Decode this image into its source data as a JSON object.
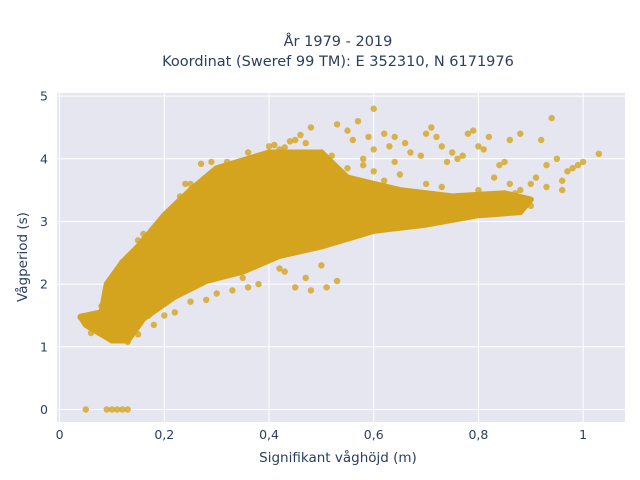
{
  "chart_data": {
    "type": "scatter",
    "title_line1": "År 1979 - 2019",
    "title_line2": "Koordinat (Sweref 99 TM): E 352310, N 6171976",
    "xlabel": "Signifikant våghöjd (m)",
    "ylabel": "Vågperiod (s)",
    "xlim": [
      -0.005,
      1.08
    ],
    "ylim": [
      -0.2,
      5.05
    ],
    "x_ticks": [
      {
        "value": 0,
        "label": "0"
      },
      {
        "value": 0.2,
        "label": "0,2"
      },
      {
        "value": 0.4,
        "label": "0,4"
      },
      {
        "value": 0.6,
        "label": "0,6"
      },
      {
        "value": 0.8,
        "label": "0,8"
      },
      {
        "value": 1,
        "label": "1"
      }
    ],
    "y_ticks": [
      {
        "value": 0,
        "label": "0"
      },
      {
        "value": 1,
        "label": "1"
      },
      {
        "value": 2,
        "label": "2"
      },
      {
        "value": 3,
        "label": "3"
      },
      {
        "value": 4,
        "label": "4"
      },
      {
        "value": 5,
        "label": "5"
      }
    ],
    "grid": true,
    "background_color": "#e5e6ef",
    "marker_color": "#d4a41f",
    "dense_region_outline": [
      [
        0.04,
        1.48
      ],
      [
        0.08,
        1.55
      ],
      [
        0.09,
        2.0
      ],
      [
        0.12,
        2.35
      ],
      [
        0.15,
        2.6
      ],
      [
        0.2,
        3.1
      ],
      [
        0.25,
        3.5
      ],
      [
        0.3,
        3.85
      ],
      [
        0.4,
        4.1
      ],
      [
        0.5,
        4.1
      ],
      [
        0.55,
        3.7
      ],
      [
        0.65,
        3.5
      ],
      [
        0.75,
        3.4
      ],
      [
        0.85,
        3.45
      ],
      [
        0.9,
        3.35
      ],
      [
        0.88,
        3.15
      ],
      [
        0.8,
        3.1
      ],
      [
        0.7,
        2.95
      ],
      [
        0.6,
        2.85
      ],
      [
        0.5,
        2.6
      ],
      [
        0.42,
        2.45
      ],
      [
        0.35,
        2.2
      ],
      [
        0.28,
        2.05
      ],
      [
        0.22,
        1.8
      ],
      [
        0.16,
        1.45
      ],
      [
        0.13,
        1.1
      ],
      [
        0.1,
        1.1
      ],
      [
        0.08,
        1.2
      ],
      [
        0.05,
        1.35
      ]
    ],
    "points": [
      [
        0.05,
        0.0
      ],
      [
        0.09,
        0.0
      ],
      [
        0.1,
        0.0
      ],
      [
        0.11,
        0.0
      ],
      [
        0.12,
        0.0
      ],
      [
        0.13,
        0.0
      ],
      [
        0.04,
        1.47
      ],
      [
        0.05,
        1.45
      ],
      [
        0.07,
        1.3
      ],
      [
        0.06,
        1.22
      ],
      [
        0.09,
        1.35
      ],
      [
        0.12,
        1.12
      ],
      [
        0.13,
        1.08
      ],
      [
        0.15,
        1.2
      ],
      [
        0.18,
        1.35
      ],
      [
        0.17,
        1.5
      ],
      [
        0.08,
        1.65
      ],
      [
        0.1,
        1.9
      ],
      [
        0.11,
        2.2
      ],
      [
        0.12,
        2.35
      ],
      [
        0.14,
        2.5
      ],
      [
        0.15,
        2.7
      ],
      [
        0.16,
        2.8
      ],
      [
        0.18,
        2.9
      ],
      [
        0.2,
        3.0
      ],
      [
        0.22,
        3.2
      ],
      [
        0.24,
        3.4
      ],
      [
        0.25,
        3.6
      ],
      [
        0.28,
        3.7
      ],
      [
        0.3,
        3.8
      ],
      [
        0.32,
        3.95
      ],
      [
        0.35,
        3.9
      ],
      [
        0.38,
        4.0
      ],
      [
        0.4,
        4.1
      ],
      [
        0.42,
        4.15
      ],
      [
        0.45,
        4.3
      ],
      [
        0.47,
        4.25
      ],
      [
        0.5,
        4.1
      ],
      [
        0.52,
        4.05
      ],
      [
        0.27,
        3.92
      ],
      [
        0.29,
        3.95
      ],
      [
        0.24,
        3.6
      ],
      [
        0.23,
        3.4
      ],
      [
        0.4,
        4.2
      ],
      [
        0.41,
        4.22
      ],
      [
        0.43,
        4.18
      ],
      [
        0.44,
        4.28
      ],
      [
        0.46,
        4.38
      ],
      [
        0.48,
        4.5
      ],
      [
        0.56,
        4.3
      ],
      [
        0.57,
        4.6
      ],
      [
        0.58,
        4.0
      ],
      [
        0.59,
        4.35
      ],
      [
        0.6,
        4.15
      ],
      [
        0.62,
        4.4
      ],
      [
        0.63,
        4.2
      ],
      [
        0.64,
        4.35
      ],
      [
        0.66,
        4.25
      ],
      [
        0.67,
        4.1
      ],
      [
        0.69,
        4.05
      ],
      [
        0.7,
        4.4
      ],
      [
        0.71,
        4.5
      ],
      [
        0.72,
        4.35
      ],
      [
        0.73,
        4.2
      ],
      [
        0.74,
        3.95
      ],
      [
        0.75,
        4.1
      ],
      [
        0.76,
        4.0
      ],
      [
        0.77,
        4.05
      ],
      [
        0.78,
        4.4
      ],
      [
        0.79,
        4.45
      ],
      [
        0.8,
        4.2
      ],
      [
        0.81,
        4.15
      ],
      [
        0.82,
        4.35
      ],
      [
        0.84,
        3.9
      ],
      [
        0.85,
        3.95
      ],
      [
        0.86,
        4.3
      ],
      [
        0.88,
        4.4
      ],
      [
        0.9,
        3.6
      ],
      [
        0.91,
        3.7
      ],
      [
        0.92,
        4.3
      ],
      [
        0.93,
        3.9
      ],
      [
        0.95,
        4.0
      ],
      [
        0.96,
        3.65
      ],
      [
        0.97,
        3.8
      ],
      [
        0.99,
        3.9
      ],
      [
        1.0,
        3.95
      ],
      [
        1.03,
        4.08
      ],
      [
        0.98,
        3.85
      ],
      [
        0.96,
        3.5
      ],
      [
        0.94,
        4.65
      ],
      [
        0.88,
        3.5
      ],
      [
        0.87,
        3.45
      ],
      [
        0.86,
        3.6
      ],
      [
        0.83,
        3.7
      ],
      [
        0.8,
        3.5
      ],
      [
        0.77,
        3.4
      ],
      [
        0.73,
        3.55
      ],
      [
        0.7,
        3.6
      ],
      [
        0.65,
        3.75
      ],
      [
        0.62,
        3.65
      ],
      [
        0.6,
        3.8
      ],
      [
        0.58,
        3.9
      ],
      [
        0.55,
        3.85
      ],
      [
        0.53,
        3.8
      ],
      [
        0.51,
        3.6
      ],
      [
        0.5,
        2.3
      ],
      [
        0.47,
        2.1
      ],
      [
        0.45,
        1.95
      ],
      [
        0.48,
        1.9
      ],
      [
        0.43,
        2.2
      ],
      [
        0.42,
        2.25
      ],
      [
        0.38,
        2.0
      ],
      [
        0.36,
        1.95
      ],
      [
        0.35,
        2.1
      ],
      [
        0.33,
        1.9
      ],
      [
        0.3,
        1.85
      ],
      [
        0.28,
        1.75
      ],
      [
        0.25,
        1.72
      ],
      [
        0.22,
        1.55
      ],
      [
        0.2,
        1.5
      ],
      [
        0.25,
        2.0
      ],
      [
        0.32,
        2.3
      ],
      [
        0.38,
        2.5
      ],
      [
        0.28,
        2.4
      ],
      [
        0.18,
        2.0
      ],
      [
        0.21,
        2.4
      ],
      [
        0.33,
        2.7
      ],
      [
        0.27,
        2.6
      ],
      [
        0.53,
        2.05
      ],
      [
        0.51,
        1.95
      ],
      [
        0.36,
        4.1
      ],
      [
        0.55,
        4.45
      ],
      [
        0.53,
        4.55
      ],
      [
        0.64,
        3.95
      ],
      [
        0.6,
        4.8
      ],
      [
        0.31,
        3.05
      ],
      [
        0.35,
        3.2
      ],
      [
        0.45,
        3.3
      ],
      [
        0.5,
        3.05
      ],
      [
        0.65,
        3.2
      ],
      [
        0.72,
        3.25
      ],
      [
        0.83,
        3.2
      ],
      [
        0.9,
        3.25
      ],
      [
        0.93,
        3.55
      ]
    ]
  }
}
